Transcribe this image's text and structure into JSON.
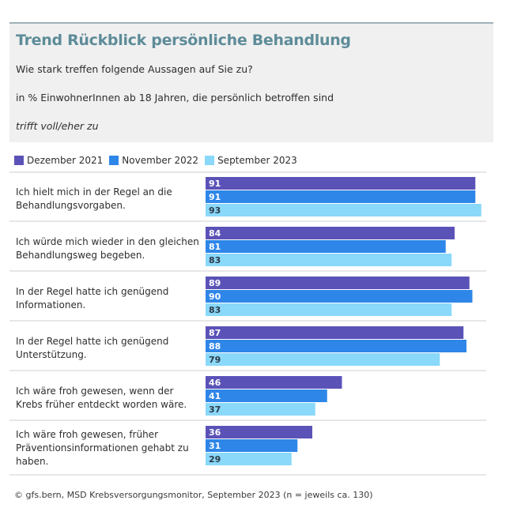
{
  "chart_data": {
    "type": "bar",
    "orientation": "horizontal",
    "title": "Trend Rückblick persönliche Behandlung",
    "subtitles": [
      "Wie stark treffen folgende Aussagen auf Sie zu?",
      "in % EinwohnerInnen ab 18 Jahren, die persönlich betroffen sind",
      "trifft voll/eher zu"
    ],
    "categories": [
      "Ich hielt mich in der Regel an die Behandlungsvorgaben.",
      "Ich würde mich wieder in den gleichen Behandlungsweg begeben.",
      "In der Regel hatte ich genügend Informationen.",
      "In der Regel hatte ich genügend Unterstützung.",
      "Ich wäre froh gewesen, wenn der Krebs früher entdeckt worden wäre.",
      "Ich wäre froh gewesen, früher Präventionsinformationen gehabt zu haben."
    ],
    "series": [
      {
        "name": "Dezember 2021",
        "color": "#5b52b8",
        "values": [
          91,
          84,
          89,
          87,
          46,
          36
        ]
      },
      {
        "name": "November 2022",
        "color": "#2e86e8",
        "values": [
          91,
          81,
          90,
          88,
          41,
          31
        ]
      },
      {
        "name": "September 2023",
        "color": "#8ad8fa",
        "values": [
          93,
          83,
          83,
          79,
          37,
          29
        ]
      }
    ],
    "xlim": [
      0,
      100
    ],
    "source": "© gfs.bern, MSD Krebsversorgungsmonitor, September 2023 (n = jeweils ca. 130)"
  }
}
